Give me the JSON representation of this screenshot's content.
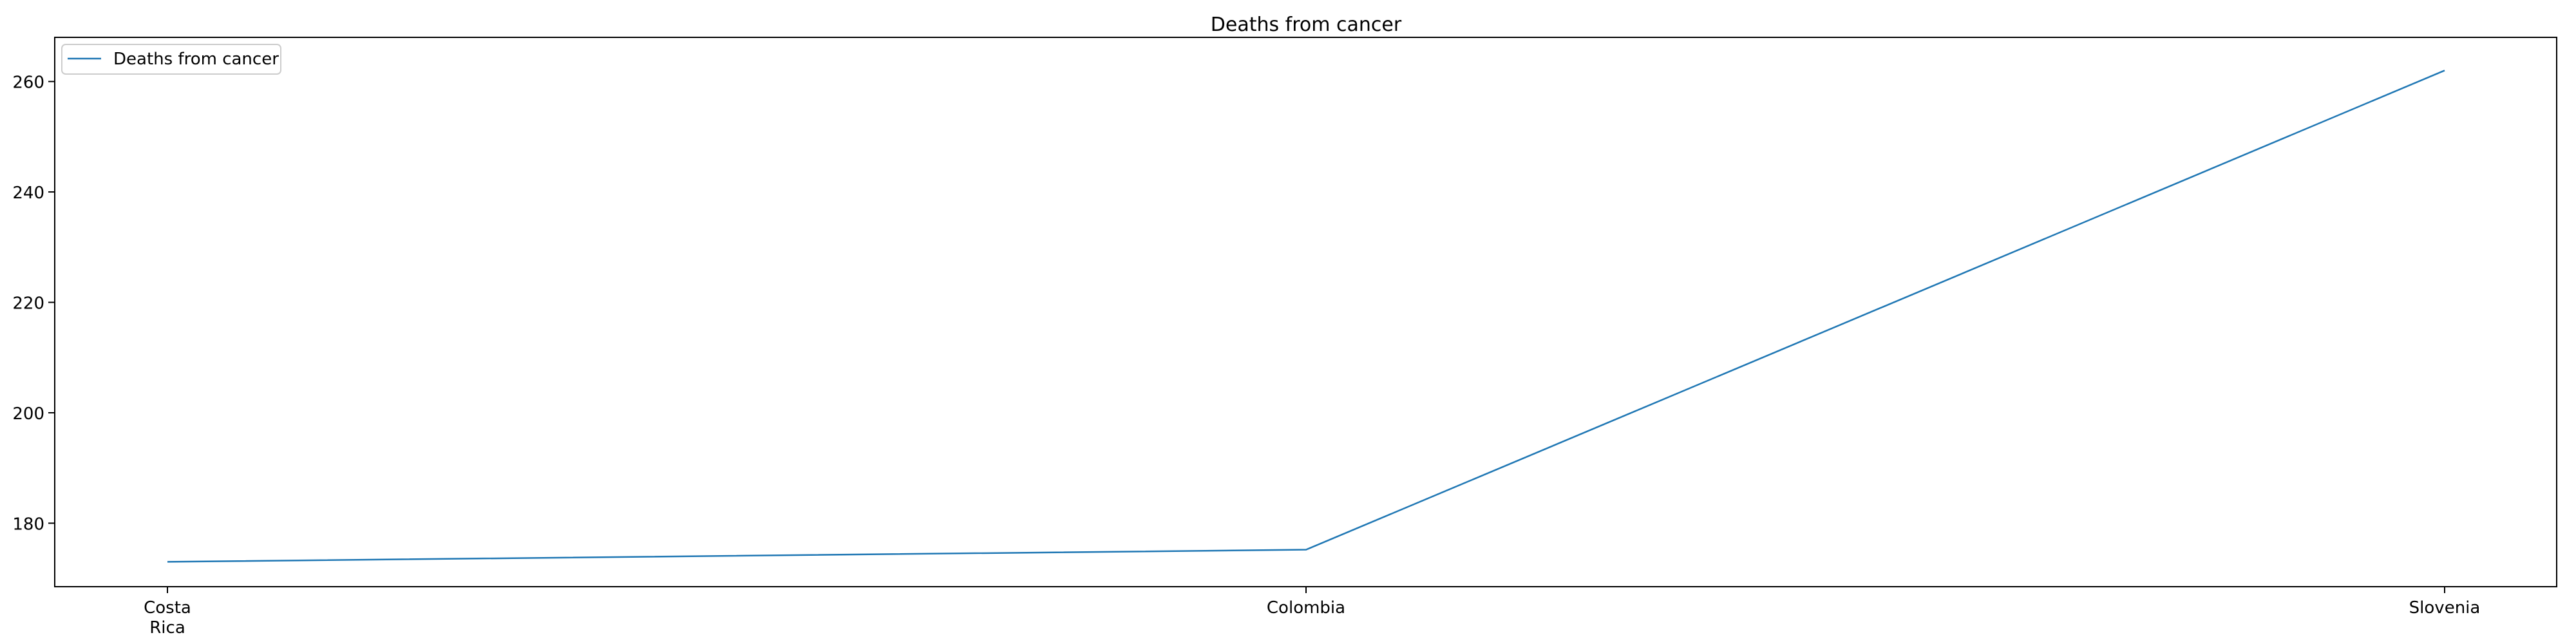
{
  "chart_data": {
    "type": "line",
    "title": "Deaths from cancer",
    "xlabel": "",
    "ylabel": "",
    "categories": [
      "Costa\nRica",
      "Colombia",
      "Slovenia"
    ],
    "series": [
      {
        "name": "Deaths from cancer",
        "values": [
          173.0,
          175.2,
          262.0
        ],
        "color": "#1f77b4"
      }
    ],
    "ylim": [
      168.5,
      268.0
    ],
    "yticks": [
      180,
      200,
      220,
      240,
      260
    ],
    "grid": false,
    "legend_position": "top-left"
  }
}
